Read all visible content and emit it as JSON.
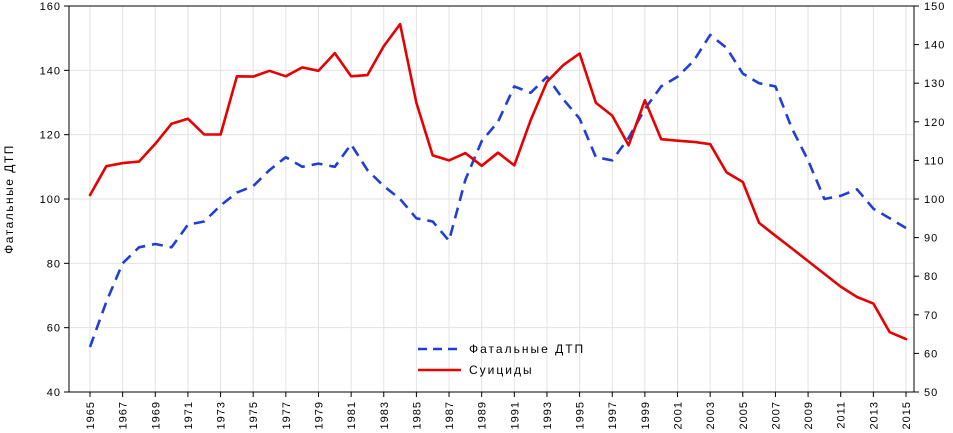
{
  "chart_data": {
    "type": "line",
    "x": [
      1965,
      1966,
      1967,
      1968,
      1969,
      1970,
      1971,
      1972,
      1973,
      1974,
      1975,
      1976,
      1977,
      1978,
      1979,
      1980,
      1981,
      1982,
      1983,
      1984,
      1985,
      1986,
      1987,
      1988,
      1989,
      1990,
      1991,
      1992,
      1993,
      1994,
      1995,
      1996,
      1997,
      1998,
      1999,
      2000,
      2001,
      2002,
      2003,
      2004,
      2005,
      2006,
      2007,
      2008,
      2009,
      2010,
      2011,
      2012,
      2013,
      2014,
      2015
    ],
    "x_tick_labels": [
      "1965",
      "1967",
      "1969",
      "1971",
      "1973",
      "1975",
      "1977",
      "1979",
      "1981",
      "1983",
      "1985",
      "1987",
      "1989",
      "1991",
      "1993",
      "1995",
      "1997",
      "1999",
      "2001",
      "2003",
      "2005",
      "2007",
      "2009",
      "2011",
      "2013",
      "2015"
    ],
    "ylabel": "Фатальные ДТП",
    "ylim": [
      40,
      160
    ],
    "y_ticks": [
      "40",
      "60",
      "80",
      "100",
      "120",
      "140",
      "160"
    ],
    "y2lim": [
      50,
      150
    ],
    "y2_ticks": [
      "50",
      "60",
      "70",
      "80",
      "90",
      "100",
      "110",
      "120",
      "130",
      "140",
      "150"
    ],
    "grid": true,
    "legend_position": "bottom-center",
    "series": [
      {
        "name": "Фатальные ДТП",
        "axis": "left",
        "color": "#1f3fd6",
        "dash": "dashed",
        "values": [
          54,
          68,
          80,
          85,
          86,
          85,
          92,
          93,
          98,
          102,
          104,
          109,
          113,
          110,
          111,
          110,
          117,
          109,
          104,
          100,
          94,
          93,
          87,
          106,
          118,
          124,
          135,
          133,
          138,
          131,
          125,
          113,
          112,
          119,
          128,
          135,
          138,
          143,
          151,
          147,
          139,
          136,
          135,
          122,
          112,
          100,
          101,
          103,
          97,
          94,
          91
        ]
      },
      {
        "name": "Суициды",
        "axis": "right",
        "color": "#e60000",
        "dash": "solid",
        "values": [
          101,
          108.5,
          109.3,
          109.7,
          114.3,
          119.5,
          120.8,
          116.7,
          116.7,
          131.8,
          131.7,
          133.2,
          131.8,
          134.1,
          133.2,
          137.8,
          131.8,
          132.1,
          139.6,
          145.3,
          124.9,
          111.3,
          110,
          111.9,
          108.6,
          112,
          108.7,
          120.4,
          130.4,
          134.7,
          137.7,
          124.9,
          121.6,
          113.9,
          125.6,
          115.5,
          115.1,
          114.8,
          114.2,
          106.9,
          104.4,
          93.8,
          90.5,
          87.2,
          83.9,
          80.6,
          77.3,
          74.6,
          72.9,
          65.5,
          63.7
        ]
      }
    ]
  }
}
